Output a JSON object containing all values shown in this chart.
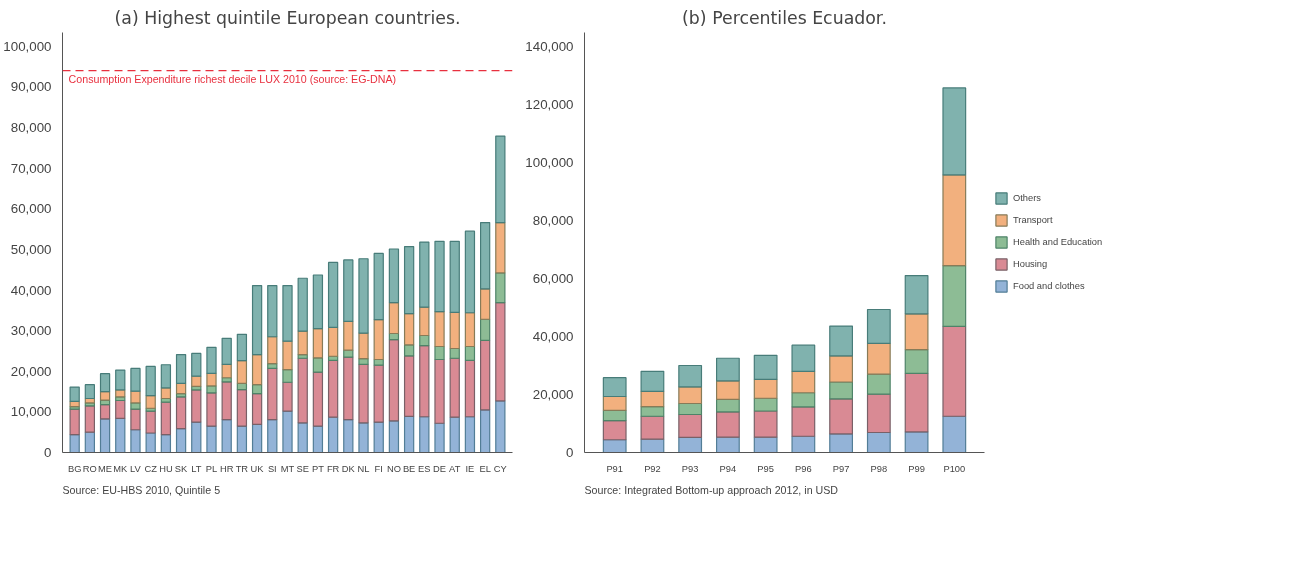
{
  "chart_data": [
    {
      "type": "bar",
      "stacked": true,
      "title": "(a) Highest quintile European countries.",
      "categories": [
        "BG",
        "RO",
        "ME",
        "MK",
        "LV",
        "CZ",
        "HU",
        "SK",
        "LT",
        "PL",
        "HR",
        "TR",
        "UK",
        "SI",
        "MT",
        "SE",
        "PT",
        "FR",
        "DK",
        "NL",
        "FI",
        "NO",
        "BE",
        "ES",
        "DE",
        "AT",
        "IE",
        "EL",
        "CY"
      ],
      "series": [
        {
          "color": "#93b3d7",
          "values": [
            4400,
            5000,
            8300,
            8400,
            5600,
            4800,
            4400,
            5900,
            7500,
            6500,
            8100,
            6500,
            6900,
            8100,
            10200,
            7300,
            6500,
            8700,
            8100,
            7300,
            7500,
            7800,
            8900,
            8800,
            7200,
            8700,
            8800,
            10500,
            12700
          ]
        },
        {
          "color": "#d98a94",
          "values": [
            6300,
            6500,
            3500,
            4400,
            5100,
            5400,
            8000,
            7800,
            7900,
            8200,
            9300,
            9000,
            7600,
            12600,
            7100,
            15900,
            13300,
            14000,
            15400,
            14400,
            14000,
            20000,
            14900,
            17500,
            15700,
            14500,
            13900,
            17100,
            24200
          ]
        },
        {
          "color": "#8dbc95",
          "values": [
            600,
            700,
            1100,
            900,
            1500,
            700,
            900,
            800,
            900,
            1700,
            1000,
            1500,
            2200,
            1200,
            3100,
            900,
            3500,
            1000,
            1700,
            1400,
            1400,
            1500,
            2700,
            2500,
            3200,
            2400,
            3400,
            5200,
            7300
          ]
        },
        {
          "color": "#f2b07e",
          "values": [
            1300,
            1100,
            2100,
            1700,
            2900,
            3100,
            2600,
            2500,
            2500,
            3100,
            3300,
            5600,
            7400,
            6600,
            7000,
            5800,
            7200,
            7100,
            7100,
            6300,
            9800,
            7600,
            7700,
            7000,
            8600,
            8900,
            8300,
            7500,
            12400
          ]
        },
        {
          "color": "#80b2ae",
          "values": [
            3500,
            3400,
            4400,
            4900,
            5600,
            7200,
            5700,
            7100,
            5600,
            6400,
            6400,
            6500,
            17000,
            12600,
            13700,
            13000,
            13200,
            16000,
            15100,
            18300,
            16300,
            13200,
            16500,
            16000,
            17300,
            17500,
            20100,
            16300,
            21300
          ]
        }
      ],
      "ylim": [
        0,
        103400
      ],
      "yticks": [
        {
          "value": 0,
          "label": "0"
        },
        {
          "value": 10000,
          "label": "10,000"
        },
        {
          "value": 20000,
          "label": "20,000"
        },
        {
          "value": 30000,
          "label": "30,000"
        },
        {
          "value": 40000,
          "label": "40,000"
        },
        {
          "value": 50000,
          "label": "50,000"
        },
        {
          "value": 60000,
          "label": "60,000"
        },
        {
          "value": 70000,
          "label": "70,000"
        },
        {
          "value": 80000,
          "label": "80,000"
        },
        {
          "value": 90000,
          "label": "90,000"
        },
        {
          "value": 100000,
          "label": "100,000"
        }
      ],
      "ref_lines": [
        {
          "axis": "y",
          "value": 94000,
          "label": "Consumption Expenditure richest decile LUX 2010 (source: EG-DNA)",
          "color": "#e8303f",
          "line_style": "dashed"
        }
      ],
      "annotations": [
        "Source: EU-HBS 2010, Quintile 5"
      ],
      "grid": false,
      "legend": false
    },
    {
      "type": "bar",
      "stacked": true,
      "title": "(b) Percentiles Ecuador.",
      "categories": [
        "P91",
        "P92",
        "P93",
        "P94",
        "P95",
        "P96",
        "P97",
        "P98",
        "P99",
        "P100"
      ],
      "series": [
        {
          "name": "Food and clothes",
          "color": "#93b3d7",
          "values": [
            4400,
            4600,
            5200,
            5300,
            5300,
            5600,
            6400,
            6900,
            7100,
            12500
          ]
        },
        {
          "name": "Housing",
          "color": "#d98a94",
          "values": [
            6600,
            7900,
            7900,
            8700,
            9000,
            10100,
            12100,
            13200,
            20200,
            31000
          ]
        },
        {
          "name": "Health and Education",
          "color": "#8dbc95",
          "values": [
            3500,
            3300,
            3800,
            4300,
            4400,
            4900,
            5800,
            6900,
            8200,
            20900
          ]
        },
        {
          "name": "Transport",
          "color": "#f2b07e",
          "values": [
            4800,
            5300,
            5700,
            6400,
            6500,
            7400,
            9000,
            10600,
            12300,
            31300
          ]
        },
        {
          "name": "Others",
          "color": "#80b2ae",
          "values": [
            6500,
            6900,
            7400,
            7800,
            8300,
            9000,
            10300,
            11700,
            13200,
            30000
          ]
        }
      ],
      "ylim": [
        0,
        144800
      ],
      "yticks": [
        {
          "value": 0,
          "label": "0"
        },
        {
          "value": 20000,
          "label": "20,000"
        },
        {
          "value": 40000,
          "label": "40,000"
        },
        {
          "value": 60000,
          "label": "60,000"
        },
        {
          "value": 80000,
          "label": "80,000"
        },
        {
          "value": 100000,
          "label": "100,000"
        },
        {
          "value": 120000,
          "label": "120,000"
        },
        {
          "value": 140000,
          "label": "140,000"
        }
      ],
      "annotations": [
        "Source: Integrated Bottom-up approach 2012, in USD"
      ],
      "grid": false,
      "legend": "right"
    }
  ]
}
